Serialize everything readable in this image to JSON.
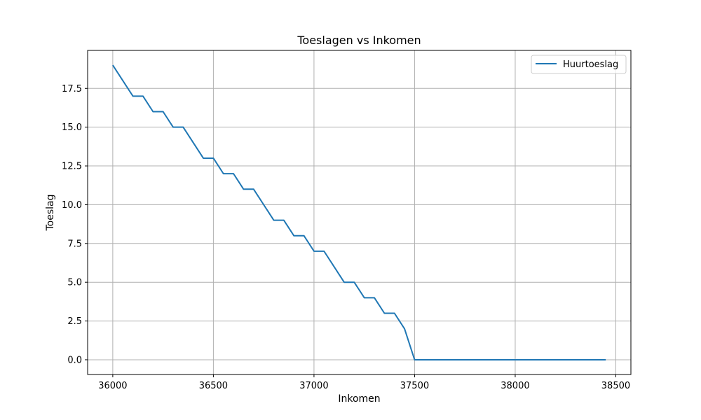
{
  "chart_data": {
    "type": "line",
    "title": "Toeslagen vs Inkomen",
    "xlabel": "Inkomen",
    "ylabel": "Toeslag",
    "xlim": [
      35875,
      38575
    ],
    "ylim": [
      -0.95,
      19.95
    ],
    "xticks": [
      36000,
      36500,
      37000,
      37500,
      38000,
      38500
    ],
    "xtick_labels": [
      "36000",
      "36500",
      "37000",
      "37500",
      "38000",
      "38500"
    ],
    "yticks": [
      0,
      2.5,
      5,
      7.5,
      10,
      12.5,
      15,
      17.5
    ],
    "ytick_labels": [
      "0.0",
      "2.5",
      "5.0",
      "7.5",
      "10.0",
      "12.5",
      "15.0",
      "17.5"
    ],
    "grid": true,
    "legend_position": "top-right",
    "series": [
      {
        "name": "Huurtoeslag",
        "color": "#1f77b4",
        "x": [
          36000,
          36100,
          36150,
          36200,
          36250,
          36300,
          36350,
          36450,
          36500,
          36550,
          36600,
          36650,
          36700,
          36800,
          36850,
          36900,
          36950,
          37000,
          37050,
          37150,
          37200,
          37250,
          37300,
          37350,
          37400,
          37450,
          37500,
          38450
        ],
        "y": [
          19,
          17,
          17,
          16,
          16,
          15,
          15,
          13,
          13,
          12,
          12,
          11,
          11,
          9,
          9,
          8,
          8,
          7,
          7,
          5,
          5,
          4,
          4,
          3,
          3,
          2,
          0,
          0
        ]
      }
    ]
  }
}
